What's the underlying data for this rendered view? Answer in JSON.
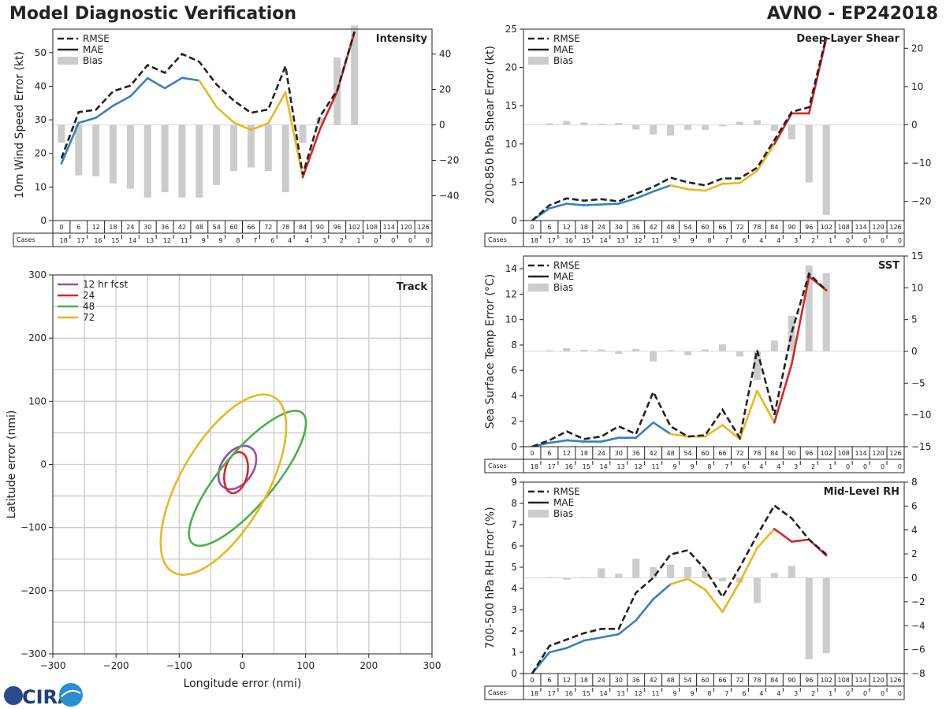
{
  "header": {
    "title": "Model Diagnostic Verification",
    "storm": "AVNO - EP242018"
  },
  "logo_text": "CIRA",
  "colors": {
    "rmse": "#222222",
    "blue": "#3a7fbf",
    "yellow": "#e8b820",
    "red": "#d62728",
    "bias": "#cccccc",
    "purple": "#9050b0",
    "green": "#4aaf4a",
    "grid": "#cccccc"
  },
  "legend": {
    "rmse": "RMSE",
    "mae": "MAE",
    "bias": "Bias"
  },
  "cases_label": "Cases",
  "chart_data": [
    {
      "id": "intensity",
      "type": "line",
      "title": "Intensity",
      "ylabel": "10m Wind Speed Error (kt)",
      "ylim": [
        0,
        57
      ],
      "yticks": [
        0,
        10,
        20,
        30,
        40,
        50
      ],
      "y2lim": [
        -54,
        54
      ],
      "y2ticks": [
        -40,
        -20,
        0,
        20,
        40
      ],
      "x": [
        0,
        6,
        12,
        18,
        24,
        30,
        36,
        42,
        48,
        54,
        60,
        66,
        72,
        78,
        84,
        90,
        96,
        102,
        108,
        114,
        120,
        126
      ],
      "cases": [
        18,
        17,
        16,
        15,
        14,
        13,
        12,
        11,
        9,
        9,
        8,
        7,
        6,
        4,
        4,
        3,
        2,
        1,
        0,
        0,
        0,
        0
      ],
      "rmse": [
        18.5,
        32.3,
        33.0,
        38.5,
        40.2,
        46.3,
        44.0,
        49.6,
        47.3,
        40.5,
        35.7,
        32.1,
        33.1,
        46.0,
        13.7,
        31.0,
        38.8,
        56.2
      ],
      "mae": [
        17.0,
        29.1,
        30.6,
        34.2,
        37.0,
        42.4,
        39.4,
        42.5,
        41.7,
        33.8,
        29.2,
        27.0,
        29.0,
        38.2,
        12.9,
        27.2,
        38.5,
        56.0
      ],
      "bias": [
        -10.0,
        -28.5,
        -29.0,
        -33.0,
        -36.0,
        -41.0,
        -38.0,
        -41.0,
        -41.0,
        -34.0,
        -26.0,
        -24.0,
        -26.0,
        -38.0,
        -10.0,
        4.0,
        38.0,
        56.0
      ]
    },
    {
      "id": "shear",
      "type": "line",
      "title": "Deep-Layer Shear",
      "ylabel": "200-850 hPa Shear Error (kt)",
      "ylim": [
        0,
        25
      ],
      "yticks": [
        0,
        5,
        10,
        15,
        20,
        25
      ],
      "y2lim": [
        -25,
        25
      ],
      "y2ticks": [
        -20,
        -10,
        0,
        10,
        20
      ],
      "x": [
        0,
        6,
        12,
        18,
        24,
        30,
        36,
        42,
        48,
        54,
        60,
        66,
        72,
        78,
        84,
        90,
        96,
        102,
        108,
        114,
        120,
        126
      ],
      "cases": [
        18,
        17,
        16,
        15,
        14,
        13,
        12,
        11,
        9,
        9,
        8,
        7,
        6,
        4,
        4,
        3,
        2,
        1,
        0,
        0,
        0,
        0
      ],
      "rmse": [
        0.0,
        2.0,
        2.9,
        2.6,
        2.8,
        2.5,
        3.5,
        4.4,
        5.6,
        5.0,
        4.6,
        5.5,
        5.5,
        6.9,
        10.5,
        14.2,
        14.8,
        24.0
      ],
      "mae": [
        0.0,
        1.6,
        2.2,
        2.0,
        2.1,
        2.2,
        2.9,
        3.8,
        4.6,
        4.1,
        3.9,
        4.8,
        4.9,
        6.5,
        10.0,
        14.0,
        14.0,
        23.8
      ],
      "bias": [
        0.0,
        0.4,
        1.0,
        0.6,
        0.3,
        0.5,
        -1.2,
        -2.5,
        -2.8,
        -1.3,
        -1.3,
        -0.4,
        0.8,
        1.2,
        -1.6,
        -3.8,
        -15.0,
        -23.5
      ]
    },
    {
      "id": "sst",
      "type": "line",
      "title": "SST",
      "ylabel": "Sea Surface Temp Error (°C)",
      "ylim": [
        0,
        15
      ],
      "yticks": [
        0,
        2,
        4,
        6,
        8,
        10,
        12,
        14
      ],
      "y2lim": [
        -15,
        15
      ],
      "y2ticks": [
        -15,
        -10,
        -5,
        0,
        5,
        10,
        15
      ],
      "x": [
        0,
        6,
        12,
        18,
        24,
        30,
        36,
        42,
        48,
        54,
        60,
        66,
        72,
        78,
        84,
        90,
        96,
        102,
        108,
        114,
        120,
        126
      ],
      "cases": [
        18,
        17,
        16,
        15,
        14,
        13,
        12,
        11,
        9,
        9,
        8,
        7,
        6,
        4,
        4,
        3,
        2,
        1,
        0,
        0,
        0,
        0
      ],
      "rmse": [
        0.0,
        0.5,
        1.2,
        0.6,
        0.8,
        1.6,
        1.0,
        4.3,
        1.6,
        0.8,
        0.9,
        2.9,
        0.7,
        7.6,
        2.5,
        9.0,
        13.6,
        12.3
      ],
      "mae": [
        0.0,
        0.3,
        0.5,
        0.4,
        0.4,
        0.7,
        0.7,
        1.9,
        1.0,
        0.8,
        0.8,
        1.7,
        0.6,
        4.4,
        1.9,
        6.5,
        13.4,
        12.3
      ],
      "bias": [
        0.0,
        0.15,
        0.5,
        0.25,
        0.3,
        -0.4,
        0.4,
        -1.6,
        0.2,
        -0.6,
        0.3,
        1.1,
        -0.8,
        -4.5,
        1.7,
        5.6,
        13.5,
        12.3
      ]
    },
    {
      "id": "rh",
      "type": "line",
      "title": "Mid-Level RH",
      "ylabel": "700-500 hPa RH Error (%)",
      "ylim": [
        0,
        9
      ],
      "yticks": [
        0,
        1,
        2,
        3,
        4,
        5,
        6,
        7,
        8,
        9
      ],
      "y2lim": [
        -8,
        8
      ],
      "y2ticks": [
        -8,
        -6,
        -4,
        -2,
        0,
        2,
        4,
        6,
        8
      ],
      "x": [
        0,
        6,
        12,
        18,
        24,
        30,
        36,
        42,
        48,
        54,
        60,
        66,
        72,
        78,
        84,
        90,
        96,
        102,
        108,
        114,
        120,
        126
      ],
      "cases": [
        18,
        17,
        16,
        15,
        14,
        13,
        12,
        11,
        9,
        9,
        8,
        7,
        6,
        4,
        4,
        3,
        2,
        1,
        0,
        0,
        0,
        0
      ],
      "rmse": [
        0.0,
        1.3,
        1.6,
        1.9,
        2.1,
        2.1,
        3.8,
        4.5,
        5.6,
        5.8,
        4.9,
        3.6,
        5.0,
        6.5,
        7.9,
        7.3,
        6.3,
        5.6
      ],
      "mae": [
        0.0,
        1.0,
        1.2,
        1.55,
        1.7,
        1.85,
        2.5,
        3.5,
        4.2,
        4.45,
        3.95,
        2.9,
        4.3,
        5.9,
        6.8,
        6.2,
        6.3,
        5.55
      ],
      "bias": [
        0.0,
        0.05,
        -0.15,
        0.05,
        0.8,
        0.35,
        1.6,
        0.9,
        1.1,
        0.9,
        0.6,
        -0.3,
        -0.4,
        -2.1,
        0.4,
        1.0,
        -6.8,
        -6.3
      ]
    },
    {
      "id": "track",
      "type": "scatter",
      "title": "Track",
      "xlabel": "Longitude error (nmi)",
      "ylabel": "Latitude error (nmi)",
      "xlim": [
        -300,
        300
      ],
      "ylim": [
        -300,
        300
      ],
      "ticks": [
        -300,
        -200,
        -100,
        0,
        100,
        200,
        300
      ],
      "ellipses": [
        {
          "name": "12 hr fcst",
          "color_key": "purple",
          "cx": -8,
          "cy": -5,
          "rx": 38,
          "ry": 25,
          "angle": 55
        },
        {
          "name": "24",
          "color_key": "red",
          "cx": -10,
          "cy": -13,
          "rx": 33,
          "ry": 18,
          "angle": 78
        },
        {
          "name": "48",
          "color_key": "green",
          "cx": 8,
          "cy": -22,
          "rx": 135,
          "ry": 42,
          "angle": 50
        },
        {
          "name": "72",
          "color_key": "yellow",
          "cx": -30,
          "cy": -32,
          "rx": 160,
          "ry": 68,
          "angle": 60
        }
      ]
    }
  ]
}
